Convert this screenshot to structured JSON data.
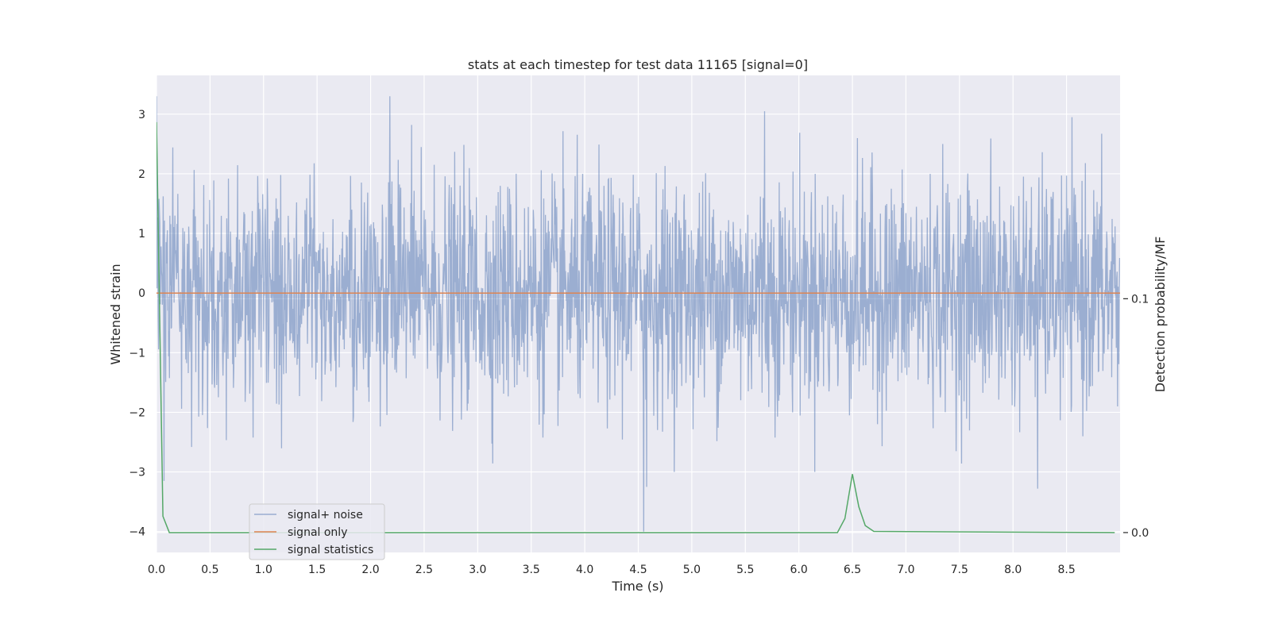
{
  "chart_data": {
    "type": "line",
    "title": "stats at each timestep for test data 11165 [signal=0]",
    "xlabel": "Time (s)",
    "ylabel": "Whitened strain",
    "ylabel_right": "Detection probability/MF",
    "xlim": [
      0.0,
      9.0
    ],
    "ylim": [
      -4.35,
      3.65
    ],
    "ylim_right": [
      -0.0085,
      0.1955
    ],
    "xticks": [
      "0.0",
      "0.5",
      "1.0",
      "1.5",
      "2.0",
      "2.5",
      "3.0",
      "3.5",
      "4.0",
      "4.5",
      "5.0",
      "5.5",
      "6.0",
      "6.5",
      "7.0",
      "7.5",
      "8.0",
      "8.5"
    ],
    "yticks": [
      "−4",
      "−3",
      "−2",
      "−1",
      "0",
      "1",
      "2",
      "3"
    ],
    "yticks_right": [
      "0.0",
      "0.1"
    ],
    "grid": true,
    "legend_position": "lower left",
    "series": [
      {
        "name": "signal+ noise",
        "color": "#4c72b0",
        "alpha": 0.5,
        "kind": "noise",
        "sample_rate_hz": 256,
        "duration_s": 9.0,
        "std": 0.95,
        "notable_points": [
          {
            "x": 0.0,
            "y": 3.3
          },
          {
            "x": 0.07,
            "y": -3.15
          },
          {
            "x": 2.18,
            "y": 3.3
          },
          {
            "x": 4.55,
            "y": -4.0
          },
          {
            "x": 4.58,
            "y": -3.25
          },
          {
            "x": 5.68,
            "y": 3.05
          },
          {
            "x": 8.23,
            "y": -3.28
          }
        ]
      },
      {
        "name": "signal only",
        "color": "#dd8452",
        "x": [
          0.0,
          9.0
        ],
        "y": [
          0.0,
          0.0
        ]
      },
      {
        "name": "signal statistics",
        "color": "#55a868",
        "axis": "right",
        "x": [
          0.0,
          0.06,
          0.12,
          6.36,
          6.43,
          6.5,
          6.56,
          6.62,
          6.7,
          8.95
        ],
        "y": [
          0.1755,
          0.007,
          0.0,
          0.0,
          0.006,
          0.025,
          0.011,
          0.003,
          0.0005,
          0.0
        ]
      }
    ]
  }
}
